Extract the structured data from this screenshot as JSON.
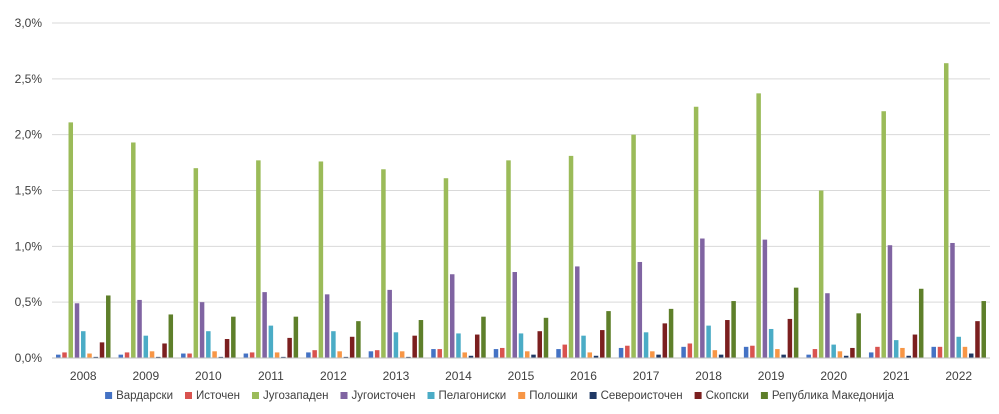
{
  "chart_data": {
    "type": "bar",
    "title": "",
    "xlabel": "",
    "ylabel": "",
    "ylim": [
      0,
      3.0
    ],
    "y_ticks": [
      "0,0%",
      "0,5%",
      "1,0%",
      "1,5%",
      "2,0%",
      "2,5%",
      "3,0%"
    ],
    "grid": true,
    "legend_position": "bottom",
    "categories": [
      "2008",
      "2009",
      "2010",
      "2011",
      "2012",
      "2013",
      "2014",
      "2015",
      "2016",
      "2017",
      "2018",
      "2019",
      "2020",
      "2021",
      "2022"
    ],
    "series": [
      {
        "name": "Вардарски",
        "color": "#4472C4",
        "values": [
          0.03,
          0.03,
          0.04,
          0.04,
          0.05,
          0.06,
          0.08,
          0.08,
          0.08,
          0.09,
          0.1,
          0.1,
          0.03,
          0.05,
          0.1
        ]
      },
      {
        "name": "Источен",
        "color": "#D9534F",
        "values": [
          0.05,
          0.05,
          0.04,
          0.05,
          0.07,
          0.07,
          0.08,
          0.09,
          0.12,
          0.11,
          0.13,
          0.11,
          0.08,
          0.1,
          0.1
        ]
      },
      {
        "name": "Југозападен",
        "color": "#9BBB59",
        "values": [
          2.11,
          1.93,
          1.7,
          1.77,
          1.76,
          1.69,
          1.61,
          1.77,
          1.81,
          2.0,
          2.25,
          2.37,
          1.5,
          2.21,
          2.64
        ]
      },
      {
        "name": "Југоисточен",
        "color": "#8064A2",
        "values": [
          0.49,
          0.52,
          0.5,
          0.59,
          0.57,
          0.61,
          0.75,
          0.77,
          0.82,
          0.86,
          1.07,
          1.06,
          0.58,
          1.01,
          1.03
        ]
      },
      {
        "name": "Пелагониски",
        "color": "#4BACC6",
        "values": [
          0.24,
          0.2,
          0.24,
          0.29,
          0.24,
          0.23,
          0.22,
          0.22,
          0.2,
          0.23,
          0.29,
          0.26,
          0.12,
          0.16,
          0.19
        ]
      },
      {
        "name": "Полошки",
        "color": "#F79646",
        "values": [
          0.04,
          0.06,
          0.06,
          0.05,
          0.06,
          0.06,
          0.05,
          0.06,
          0.05,
          0.06,
          0.07,
          0.08,
          0.06,
          0.09,
          0.1
        ]
      },
      {
        "name": "Североисточен",
        "color": "#1F3864",
        "values": [
          0.01,
          0.01,
          0.01,
          0.01,
          0.01,
          0.01,
          0.02,
          0.03,
          0.02,
          0.03,
          0.03,
          0.03,
          0.02,
          0.02,
          0.04
        ]
      },
      {
        "name": "Скопски",
        "color": "#7B1F1F",
        "values": [
          0.14,
          0.13,
          0.17,
          0.18,
          0.19,
          0.2,
          0.21,
          0.24,
          0.25,
          0.31,
          0.34,
          0.35,
          0.09,
          0.21,
          0.33
        ]
      },
      {
        "name": "Република Македонија",
        "color": "#5E7F2A",
        "values": [
          0.56,
          0.39,
          0.37,
          0.37,
          0.33,
          0.34,
          0.37,
          0.36,
          0.42,
          0.44,
          0.51,
          0.63,
          0.4,
          0.62,
          0.51
        ]
      }
    ]
  }
}
